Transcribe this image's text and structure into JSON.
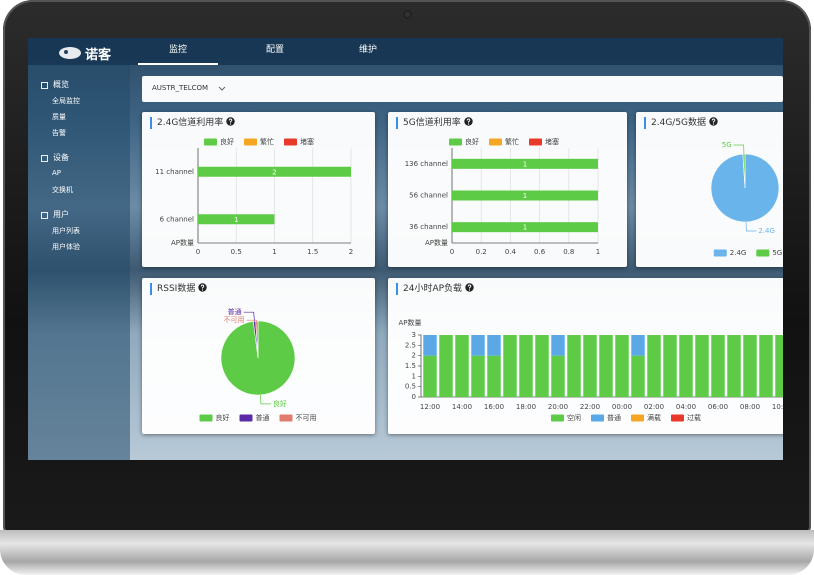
{
  "header": {
    "brand": "诺客",
    "tabs": [
      "监控",
      "配置",
      "维护"
    ],
    "active_tab": 0
  },
  "sidebar": {
    "sections": [
      {
        "title": "概览",
        "items": [
          "全局监控",
          "质量",
          "告警"
        ]
      },
      {
        "title": "设备",
        "items": [
          "AP",
          "交换机"
        ]
      },
      {
        "title": "用户",
        "items": [
          "用户列表",
          "用户体验"
        ]
      }
    ]
  },
  "selector": "AUSTR_TELCOM",
  "chart_data": [
    {
      "type": "bar",
      "orientation": "horizontal",
      "title": "2.4G信道利用率",
      "categories": [
        "11 channel",
        "6 channel"
      ],
      "series": [
        {
          "name": "良好",
          "color": "#5dcb45",
          "values": [
            2,
            1
          ]
        },
        {
          "name": "繁忙",
          "color": "#f5a623",
          "values": [
            0,
            0
          ]
        },
        {
          "name": "堵塞",
          "color": "#e8392b",
          "values": [
            0,
            0
          ]
        }
      ],
      "xlim": [
        0,
        2
      ],
      "xticks": [
        0,
        0.5,
        1,
        1.5,
        2
      ],
      "ylabel": "AP数量",
      "grid": true,
      "data_labels": true
    },
    {
      "type": "bar",
      "orientation": "horizontal",
      "title": "5G信道利用率",
      "categories": [
        "136 channel",
        "56 channel",
        "36 channel"
      ],
      "series": [
        {
          "name": "良好",
          "color": "#5dcb45",
          "values": [
            1,
            1,
            1
          ]
        },
        {
          "name": "繁忙",
          "color": "#f5a623",
          "values": [
            0,
            0,
            0
          ]
        },
        {
          "name": "堵塞",
          "color": "#e8392b",
          "values": [
            0,
            0,
            0
          ]
        }
      ],
      "xlim": [
        0,
        1
      ],
      "xticks": [
        0,
        0.2,
        0.4,
        0.6,
        0.8,
        1
      ],
      "ylabel": "AP数量",
      "grid": true,
      "data_labels": true
    },
    {
      "type": "pie",
      "title": "2.4G/5G数据",
      "categories": [
        "2.4G",
        "5G"
      ],
      "values": [
        99,
        1
      ],
      "colors": [
        "#6ab4ec",
        "#5dcb45"
      ]
    },
    {
      "type": "pie",
      "title": "RSSI数据",
      "categories": [
        "良好",
        "普通",
        "不可用"
      ],
      "values": [
        98,
        1,
        1
      ],
      "colors": [
        "#5dcb45",
        "#5b2aa8",
        "#e07b6e"
      ]
    },
    {
      "type": "bar",
      "orientation": "vertical",
      "stacked": true,
      "title": "24小时AP负载",
      "categories": [
        "12:00",
        null,
        "14:00",
        null,
        "16:00",
        null,
        "18:00",
        null,
        "20:00",
        null,
        "22:00",
        null,
        "00:00",
        null,
        "02:00",
        null,
        "04:00",
        null,
        "06:00",
        null,
        "08:00",
        null,
        "10:00"
      ],
      "series": [
        {
          "name": "空闲",
          "color": "#5dcb45",
          "values": [
            2,
            3,
            3,
            2,
            2,
            3,
            3,
            3,
            2,
            3,
            3,
            3,
            3,
            2,
            3,
            3,
            3,
            3,
            3,
            3,
            3,
            3,
            3
          ]
        },
        {
          "name": "普通",
          "color": "#5aa9e6",
          "values": [
            1,
            0,
            0,
            1,
            1,
            0,
            0,
            0,
            1,
            0,
            0,
            0,
            0,
            1,
            0,
            0,
            0,
            0,
            0,
            0,
            0,
            0,
            0
          ]
        },
        {
          "name": "满载",
          "color": "#f5a623",
          "values": [
            0,
            0,
            0,
            0,
            0,
            0,
            0,
            0,
            0,
            0,
            0,
            0,
            0,
            0,
            0,
            0,
            0,
            0,
            0,
            0,
            0,
            0,
            0
          ]
        },
        {
          "name": "过载",
          "color": "#e8392b",
          "values": [
            0,
            0,
            0,
            0,
            0,
            0,
            0,
            0,
            0,
            0,
            0,
            0,
            0,
            0,
            0,
            0,
            0,
            0,
            0,
            0,
            0,
            0,
            0
          ]
        }
      ],
      "ylim": [
        0,
        3
      ],
      "yticks": [
        0,
        0.5,
        1,
        1.5,
        2,
        2.5,
        3
      ],
      "ylabel": "AP数量",
      "grid": false
    }
  ]
}
